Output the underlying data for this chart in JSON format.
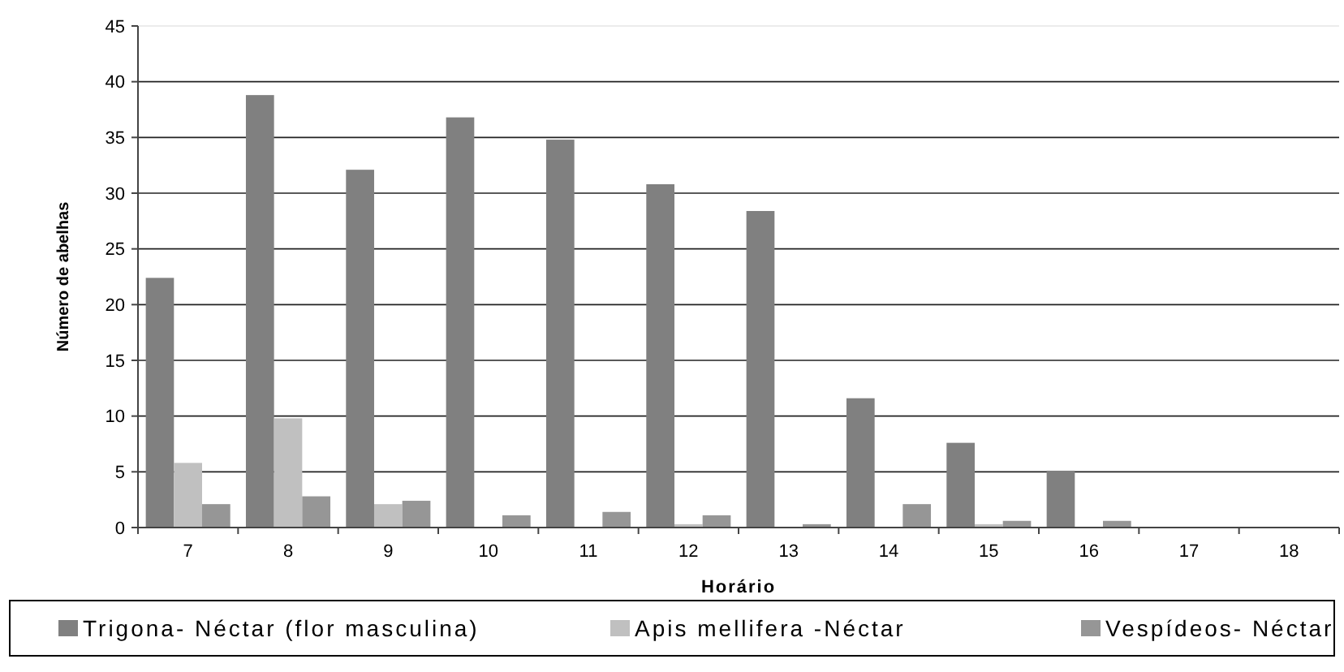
{
  "chart_data": {
    "type": "bar",
    "xlabel": "Horário",
    "ylabel": "Número de abelhas",
    "categories": [
      "7",
      "8",
      "9",
      "10",
      "11",
      "12",
      "13",
      "14",
      "15",
      "16",
      "17",
      "18"
    ],
    "series": [
      {
        "name": "Trigona- Néctar (flor masculina)",
        "color": "#808080",
        "values": [
          22.4,
          38.8,
          32.1,
          36.8,
          34.8,
          30.8,
          28.4,
          11.6,
          7.6,
          5.1,
          0,
          0
        ]
      },
      {
        "name": "Apis mellifera -Néctar",
        "color": "#c0c0c0",
        "values": [
          5.8,
          9.8,
          2.1,
          0,
          0,
          0.3,
          0,
          0,
          0.3,
          0,
          0,
          0
        ]
      },
      {
        "name": "Vespídeos- Néctar",
        "color": "#969696",
        "values": [
          2.1,
          2.8,
          2.4,
          1.1,
          1.4,
          1.1,
          0.3,
          2.1,
          0.6,
          0.6,
          0,
          0
        ]
      }
    ],
    "ylim": [
      0,
      45
    ],
    "yticks": [
      0,
      5,
      10,
      15,
      20,
      25,
      30,
      35,
      40,
      45
    ],
    "grid": "y",
    "legend": "bottom"
  }
}
